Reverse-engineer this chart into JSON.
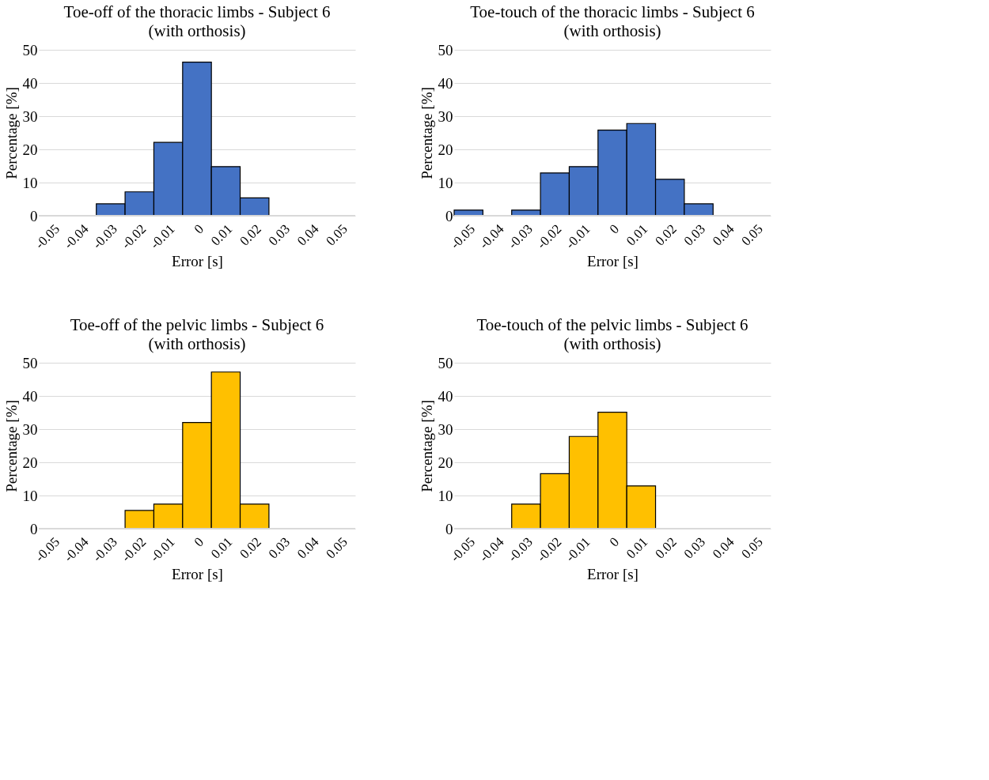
{
  "chart_data": [
    {
      "type": "bar",
      "title": "Toe-off of the thoracic limbs - Subject 6",
      "subtitle": "(with orthosis)",
      "xlabel": "Error [s]",
      "ylabel": "Percentage [%]",
      "categories": [
        "-0.05",
        "-0.04",
        "-0.03",
        "-0.02",
        "-0.01",
        "0",
        "0.01",
        "0.02",
        "0.03",
        "0.04",
        "0.05"
      ],
      "values": [
        null,
        null,
        3.6,
        7.2,
        22.1,
        46.3,
        14.8,
        5.4,
        null,
        null,
        null
      ],
      "color": "#4472c4",
      "ylim": [
        0,
        50
      ],
      "yticks": [
        0,
        10,
        20,
        30,
        40,
        50
      ],
      "grid": "y"
    },
    {
      "type": "bar",
      "title": "Toe-touch of the thoracic limbs - Subject 6",
      "subtitle": "(with orthosis)",
      "xlabel": "Error [s]",
      "ylabel": "Percentage [%]",
      "categories": [
        "-0.05",
        "-0.04",
        "-0.03",
        "-0.02",
        "-0.01",
        "0",
        "0.01",
        "0.02",
        "0.03",
        "0.04",
        "0.05"
      ],
      "values": [
        1.7,
        null,
        1.7,
        12.9,
        14.8,
        25.8,
        27.8,
        11.0,
        3.6,
        null,
        null
      ],
      "color": "#4472c4",
      "ylim": [
        0,
        50
      ],
      "yticks": [
        0,
        10,
        20,
        30,
        40,
        50
      ],
      "grid": "y"
    },
    {
      "type": "bar",
      "title": "Toe-off of the pelvic limbs - Subject 6",
      "subtitle": "(with orthosis)",
      "xlabel": "Error [s]",
      "ylabel": "Percentage [%]",
      "categories": [
        "-0.05",
        "-0.04",
        "-0.03",
        "-0.02",
        "-0.01",
        "0",
        "0.01",
        "0.02",
        "0.03",
        "0.04",
        "0.05"
      ],
      "values": [
        null,
        null,
        null,
        5.5,
        7.4,
        32.0,
        47.2,
        7.4,
        null,
        null,
        null
      ],
      "color": "#ffc000",
      "ylim": [
        0,
        50
      ],
      "yticks": [
        0,
        10,
        20,
        30,
        40,
        50
      ],
      "grid": "y"
    },
    {
      "type": "bar",
      "title": "Toe-touch of the pelvic limbs - Subject 6",
      "subtitle": "(with orthosis)",
      "xlabel": "Error [s]",
      "ylabel": "Percentage [%]",
      "categories": [
        "-0.05",
        "-0.04",
        "-0.03",
        "-0.02",
        "-0.01",
        "0",
        "0.01",
        "0.02",
        "0.03",
        "0.04",
        "0.05"
      ],
      "values": [
        null,
        null,
        7.4,
        16.6,
        27.8,
        35.1,
        12.9,
        null,
        null,
        null,
        null
      ],
      "color": "#ffc000",
      "ylim": [
        0,
        50
      ],
      "yticks": [
        0,
        10,
        20,
        30,
        40,
        50
      ],
      "grid": "y"
    }
  ]
}
